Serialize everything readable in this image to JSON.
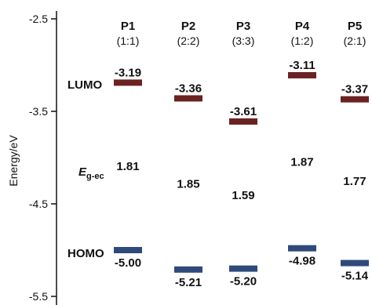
{
  "chart_data": {
    "type": "energy-level",
    "ylabel": "Energy/eV",
    "ylim": [
      -5.5,
      -2.5
    ],
    "yticks": [
      "-2.5",
      "-3.5",
      "-4.5",
      "-5.5"
    ],
    "ytick_values": [
      -2.5,
      -3.5,
      -4.5,
      -5.5
    ],
    "row_labels": {
      "lumo": "LUMO",
      "gap_main": "E",
      "gap_sub": "g-ec",
      "homo": "HOMO"
    },
    "colors": {
      "lumo": "#6b2222",
      "homo": "#2f4a7a"
    },
    "polymers": [
      {
        "name": "P1",
        "ratio": "(1:1)",
        "lumo": -3.19,
        "lumo_label": "-3.19",
        "gap_label": "1.81",
        "homo": -5.0,
        "homo_label": "-5.00"
      },
      {
        "name": "P2",
        "ratio": "(2:2)",
        "lumo": -3.36,
        "lumo_label": "-3.36",
        "gap_label": "1.85",
        "homo": -5.21,
        "homo_label": "-5.21"
      },
      {
        "name": "P3",
        "ratio": "(3:3)",
        "lumo": -3.61,
        "lumo_label": "-3.61",
        "gap_label": "1.59",
        "homo": -5.2,
        "homo_label": "-5.20"
      },
      {
        "name": "P4",
        "ratio": "(1:2)",
        "lumo": -3.11,
        "lumo_label": "-3.11",
        "gap_label": "1.87",
        "homo": -4.98,
        "homo_label": "-4.98"
      },
      {
        "name": "P5",
        "ratio": "(2:1)",
        "lumo": -3.37,
        "lumo_label": "-3.37",
        "gap_label": "1.77",
        "homo": -5.14,
        "homo_label": "-5.14"
      }
    ]
  }
}
